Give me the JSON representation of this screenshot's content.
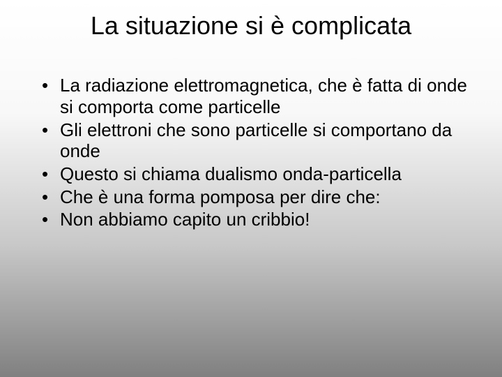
{
  "slide": {
    "title": "La situazione si è complicata",
    "bullets": [
      "La radiazione elettromagnetica, che è fatta di onde si comporta come particelle",
      "Gli elettroni che sono particelle si comportano da onde",
      "Questo si chiama dualismo onda-particella",
      "Che è una forma pomposa per dire che:",
      "Non abbiamo capito un cribbio!"
    ],
    "colors": {
      "text": "#000000",
      "background_top": "#ffffff",
      "background_bottom": "#808080"
    },
    "typography": {
      "title_fontsize_pt": 36,
      "body_fontsize_pt": 26,
      "font_family": "Arial"
    }
  }
}
